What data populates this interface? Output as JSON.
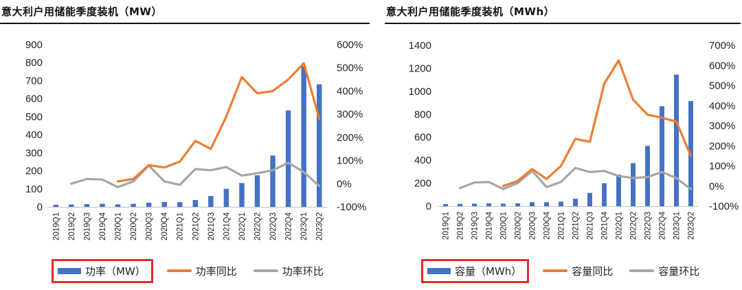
{
  "colors": {
    "bar": "#4472c4",
    "yoy": "#ed7d31",
    "qoq": "#a5a5a5",
    "highlight": "#e32b2b"
  },
  "chart_data": [
    {
      "type": "bar",
      "title": "意大利户用储能季度装机（MW）",
      "categories": [
        "2019Q1",
        "2019Q2",
        "2019Q3",
        "2019Q4",
        "2020Q1",
        "2020Q2",
        "2020Q3",
        "2020Q4",
        "2021Q1",
        "2021Q2",
        "2021Q3",
        "2021Q4",
        "2022Q1",
        "2022Q2",
        "2022Q3",
        "2022Q4",
        "2023Q1",
        "2023Q2"
      ],
      "y_left": {
        "ticks": [
          "900",
          "800",
          "700",
          "600",
          "500",
          "400",
          "300",
          "200",
          "100",
          "0"
        ],
        "ylim": [
          0,
          900
        ]
      },
      "y_right": {
        "ticks": [
          "600%",
          "500%",
          "400%",
          "300%",
          "200%",
          "100%",
          "0%",
          "-100%"
        ],
        "ylim": [
          -100,
          600
        ]
      },
      "series": [
        {
          "name": "功率（MW）",
          "axis": "left",
          "kind": "bar",
          "values": [
            12,
            13,
            15,
            17,
            14,
            17,
            23,
            27,
            26,
            38,
            60,
            100,
            132,
            175,
            285,
            535,
            780,
            680
          ]
        },
        {
          "name": "功率同比",
          "axis": "right",
          "kind": "line",
          "values": [
            null,
            null,
            null,
            null,
            10,
            20,
            80,
            70,
            95,
            185,
            150,
            290,
            460,
            390,
            400,
            450,
            520,
            280
          ]
        },
        {
          "name": "功率环比",
          "axis": "right",
          "kind": "line",
          "values": [
            null,
            0,
            20,
            18,
            -15,
            10,
            78,
            10,
            -5,
            63,
            58,
            72,
            35,
            45,
            58,
            90,
            50,
            -10
          ]
        }
      ],
      "legend": [
        {
          "label": "功率（MW）",
          "kind": "bar",
          "highlight": true
        },
        {
          "label": "功率同比",
          "kind": "line"
        },
        {
          "label": "功率环比",
          "kind": "line"
        }
      ]
    },
    {
      "type": "bar",
      "title": "意大利户用储能季度装机（MWh）",
      "categories": [
        "2019Q1",
        "2019Q2",
        "2019Q3",
        "2019Q4",
        "2020Q1",
        "2020Q2",
        "2020Q3",
        "2020Q4",
        "2021Q1",
        "2021Q2",
        "2021Q3",
        "2021Q4",
        "2022Q1",
        "2022Q2",
        "2022Q3",
        "2022Q4",
        "2023Q1",
        "2023Q2"
      ],
      "y_left": {
        "ticks": [
          "1400",
          "1200",
          "1000",
          "800",
          "600",
          "400",
          "200",
          "0"
        ],
        "ylim": [
          0,
          1400
        ]
      },
      "y_right": {
        "ticks": [
          "700%",
          "600%",
          "500%",
          "400%",
          "300%",
          "200%",
          "100%",
          "0%",
          "-100%"
        ],
        "ylim": [
          -100,
          700
        ]
      },
      "series": [
        {
          "name": "容量（MWh）",
          "axis": "left",
          "kind": "bar",
          "values": [
            18,
            20,
            22,
            25,
            22,
            25,
            35,
            35,
            40,
            65,
            115,
            200,
            275,
            375,
            525,
            870,
            1145,
            915
          ]
        },
        {
          "name": "容量同比",
          "axis": "right",
          "kind": "line",
          "values": [
            null,
            null,
            null,
            null,
            0,
            25,
            85,
            35,
            100,
            235,
            220,
            510,
            625,
            430,
            355,
            340,
            320,
            150
          ]
        },
        {
          "name": "容量环比",
          "axis": "right",
          "kind": "line",
          "values": [
            null,
            -10,
            18,
            20,
            -15,
            15,
            75,
            -5,
            20,
            90,
            70,
            75,
            50,
            40,
            45,
            70,
            40,
            -15
          ]
        }
      ],
      "legend": [
        {
          "label": "容量（MWh）",
          "kind": "bar",
          "highlight": true
        },
        {
          "label": "容量同比",
          "kind": "line"
        },
        {
          "label": "容量环比",
          "kind": "line"
        }
      ]
    }
  ]
}
